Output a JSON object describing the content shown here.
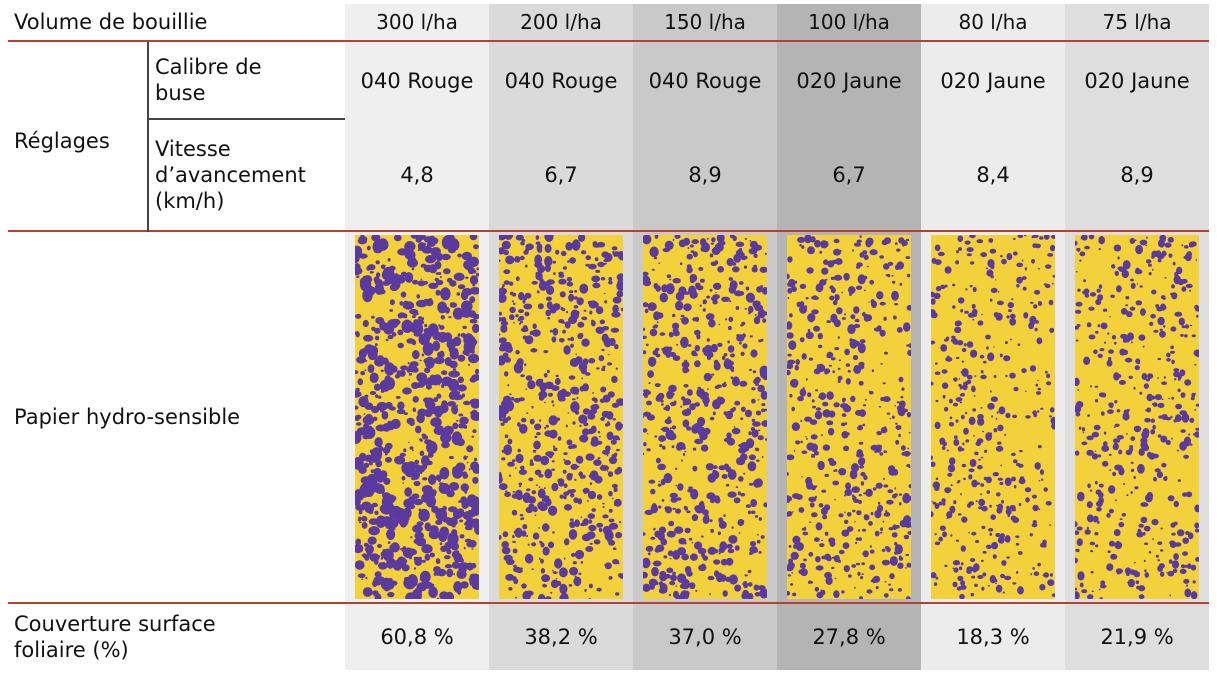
{
  "header": {
    "row_label": "Volume de bouillie",
    "volumes": [
      "300 l/ha",
      "200 l/ha",
      "150 l/ha",
      "100 l/ha",
      "80 l/ha",
      "75 l/ha"
    ]
  },
  "settings": {
    "group_label": "Réglages",
    "nozzle_label": [
      "Calibre de",
      "buse"
    ],
    "nozzles": [
      "040 Rouge",
      "040 Rouge",
      "040 Rouge",
      "020 Jaune",
      "020 Jaune",
      "020 Jaune"
    ],
    "speed_label": [
      "Vitesse",
      "d’avancement",
      "(km/h)"
    ],
    "speeds": [
      "4,8",
      "6,7",
      "8,9",
      "6,7",
      "8,4",
      "8,9"
    ]
  },
  "paper": {
    "label": "Papier hydro-sensible",
    "stain_color": "#5b3aa0",
    "paper_color": "#f2d13a",
    "coverage_levels": [
      0.608,
      0.382,
      0.37,
      0.278,
      0.183,
      0.219
    ]
  },
  "coverage": {
    "label": [
      "Couverture surface",
      "foliaire (%)"
    ],
    "values": [
      "60,8 %",
      "38,2 %",
      "37,0 %",
      "27,8 %",
      "18,3 %",
      "21,9 %"
    ]
  },
  "colors": {
    "divider": "#b24136",
    "column_shades": [
      "#efefef",
      "#dadada",
      "#c9c9c9",
      "#b4b4b4",
      "#ececec",
      "#dedede"
    ]
  }
}
